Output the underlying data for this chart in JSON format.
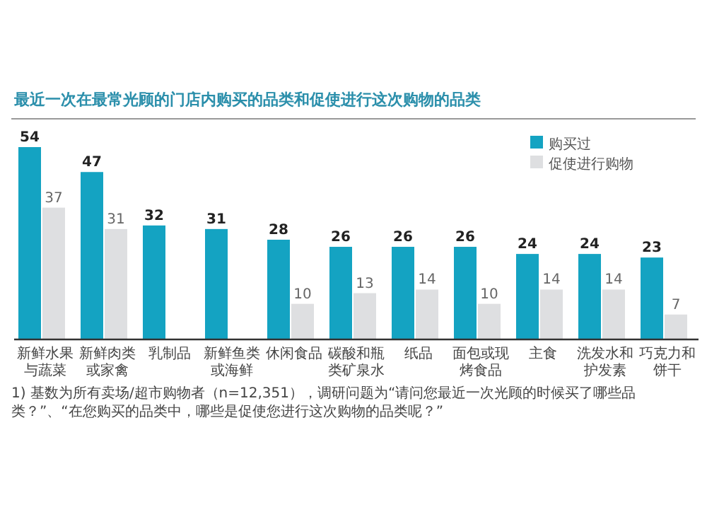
{
  "chart_data": {
    "type": "bar",
    "title": "最近一次在最常光顾的门店内购买的品类和促使进行这次购物的品类",
    "categories": [
      "新鲜水果与蔬菜",
      "新鲜肉类或家禽",
      "乳制品",
      "新鲜鱼类或海鲜",
      "休闲食品",
      "碳酸和瓶类矿泉水",
      "纸品",
      "面包或现烤食品",
      "主食",
      "洗发水和护发素",
      "巧克力和饼干"
    ],
    "series": [
      {
        "name": "购买过",
        "color": "#14a3c2",
        "values": [
          54,
          47,
          32,
          31,
          28,
          26,
          26,
          26,
          24,
          24,
          23
        ]
      },
      {
        "name": "促使进行购物",
        "color": "#dedfe1",
        "values": [
          37,
          31,
          null,
          null,
          10,
          13,
          14,
          10,
          14,
          14,
          7
        ]
      }
    ],
    "data_labels": true,
    "legend": "top right",
    "annotations": [
      "1) 基数为所有卖场/超市购物者（n=12,351），调研问题为“请问您最近一次光顾的时候买了哪些品类？”、“在您购买的品类中，哪些是促使您进行这次购物的品类呢？”"
    ]
  }
}
